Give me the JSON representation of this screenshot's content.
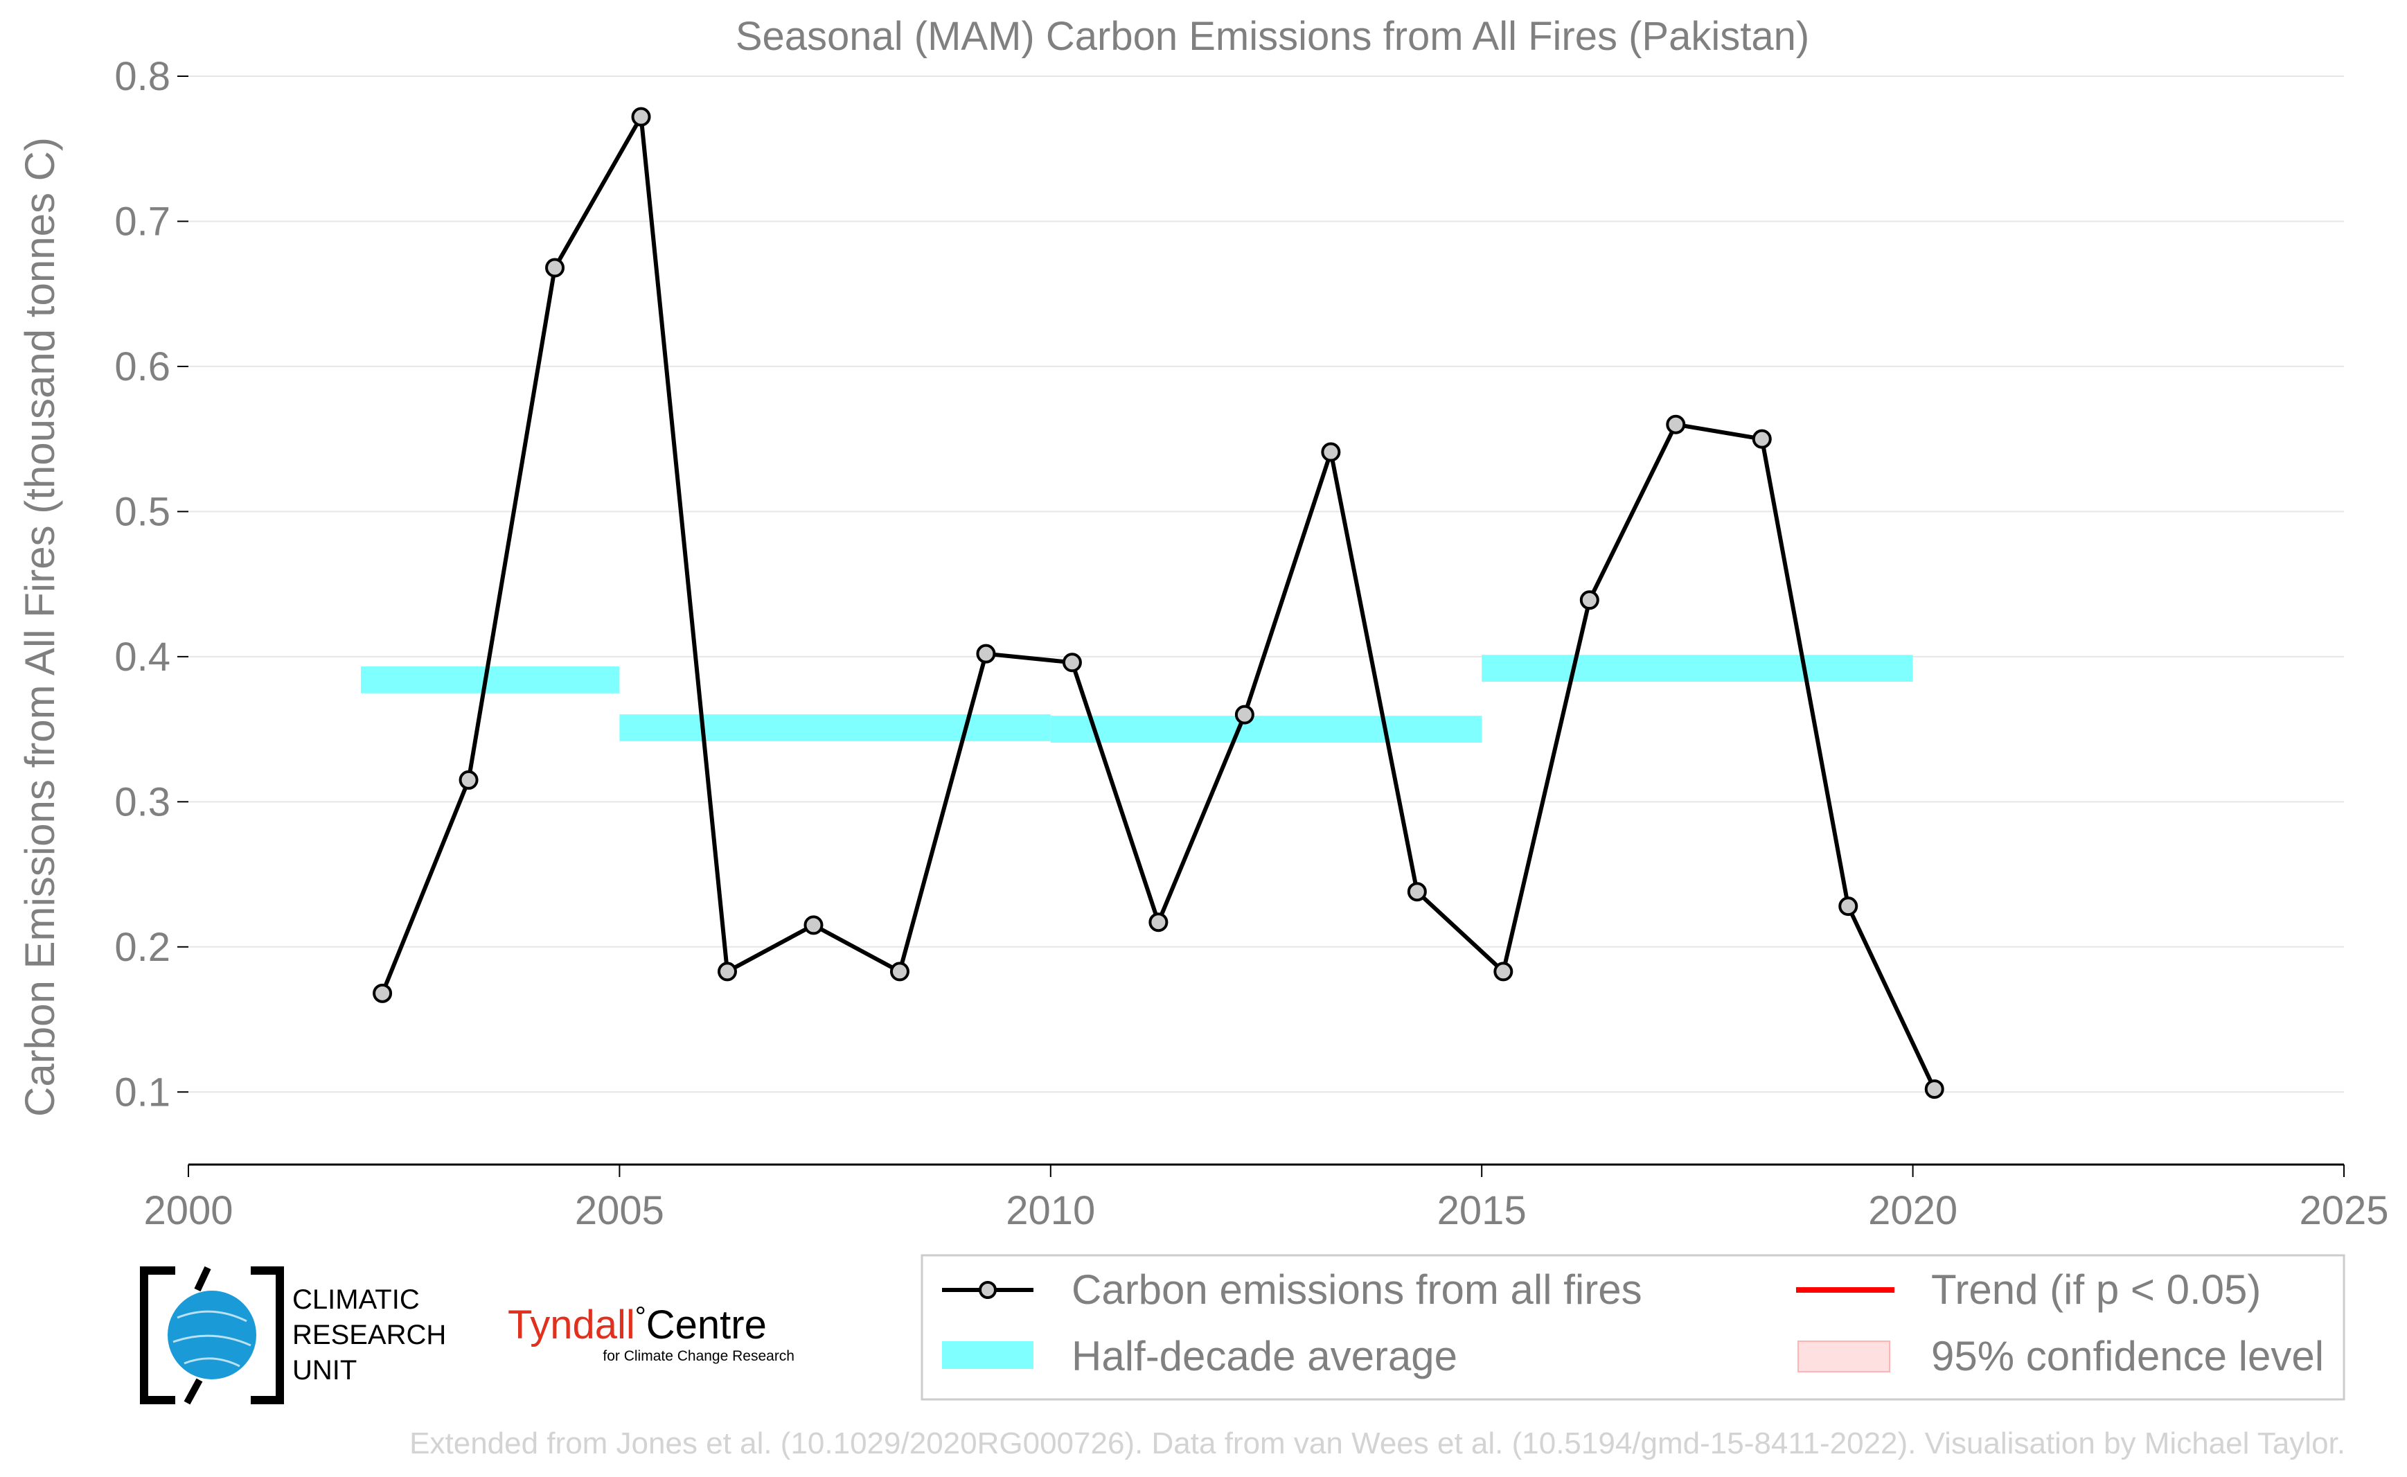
{
  "chart_data": {
    "type": "line",
    "title": "Seasonal (MAM) Carbon Emissions from All Fires (Pakistan)",
    "xlabel": "",
    "ylabel": "Carbon Emissions from All Fires (thousand tonnes C)",
    "xlim": [
      2000,
      2025
    ],
    "ylim": [
      0.05,
      0.8
    ],
    "xticks": [
      2000,
      2005,
      2010,
      2015,
      2020,
      2025
    ],
    "yticks": [
      0.1,
      0.2,
      0.3,
      0.4,
      0.5,
      0.6,
      0.7,
      0.8
    ],
    "xtick_labels": [
      "2000",
      "2005",
      "2010",
      "2015",
      "2020",
      "2025"
    ],
    "ytick_labels": [
      "0.1",
      "0.2",
      "0.3",
      "0.4",
      "0.5",
      "0.6",
      "0.7",
      "0.8"
    ],
    "grid": "horizontal",
    "series": [
      {
        "name": "Carbon emissions from all fires",
        "color": "#000000",
        "marker_fill": "#cccccc",
        "points": [
          {
            "x": 2002.25,
            "y": 0.168
          },
          {
            "x": 2003.25,
            "y": 0.315
          },
          {
            "x": 2004.25,
            "y": 0.668
          },
          {
            "x": 2005.25,
            "y": 0.772
          },
          {
            "x": 2006.25,
            "y": 0.183
          },
          {
            "x": 2007.25,
            "y": 0.215
          },
          {
            "x": 2008.25,
            "y": 0.183
          },
          {
            "x": 2009.25,
            "y": 0.402
          },
          {
            "x": 2010.25,
            "y": 0.396
          },
          {
            "x": 2011.25,
            "y": 0.217
          },
          {
            "x": 2012.25,
            "y": 0.36
          },
          {
            "x": 2013.25,
            "y": 0.541
          },
          {
            "x": 2014.25,
            "y": 0.238
          },
          {
            "x": 2015.25,
            "y": 0.183
          },
          {
            "x": 2016.25,
            "y": 0.439
          },
          {
            "x": 2017.25,
            "y": 0.56
          },
          {
            "x": 2018.25,
            "y": 0.55
          },
          {
            "x": 2019.25,
            "y": 0.228
          },
          {
            "x": 2020.25,
            "y": 0.102
          }
        ]
      }
    ],
    "half_decade_average": {
      "name": "Half-decade average",
      "color": "#7fffff",
      "segments": [
        {
          "x0": 2002,
          "x1": 2005,
          "y": 0.384
        },
        {
          "x0": 2005,
          "x1": 2010,
          "y": 0.351
        },
        {
          "x0": 2010,
          "x1": 2015,
          "y": 0.35
        },
        {
          "x0": 2015,
          "x1": 2020,
          "y": 0.392
        }
      ]
    },
    "legend": {
      "placement": "bottom-right",
      "entries": [
        {
          "label": "Carbon emissions from all fires",
          "kind": "line-marker",
          "color": "#000000"
        },
        {
          "label": "Trend (if p < 0.05)",
          "kind": "line",
          "color": "#ff0000"
        },
        {
          "label": "Half-decade average",
          "kind": "band",
          "color": "#7fffff"
        },
        {
          "label": "95% confidence level",
          "kind": "patch",
          "color": "#ffe0e0"
        }
      ]
    },
    "credit": "Extended from Jones et al. (10.1029/2020RG000726). Data from van Wees et al. (10.5194/gmd-15-8411-2022). Visualisation by Michael Taylor."
  },
  "logos": {
    "cru_line1": "CLIMATIC",
    "cru_line2": "RESEARCH",
    "cru_line3": "UNIT",
    "tyndall_main": "Tyndall",
    "tyndall_degree": "°",
    "tyndall_centre": "Centre",
    "tyndall_sub": "for Climate Change Research",
    "tyndall_color": "#e0301e"
  }
}
